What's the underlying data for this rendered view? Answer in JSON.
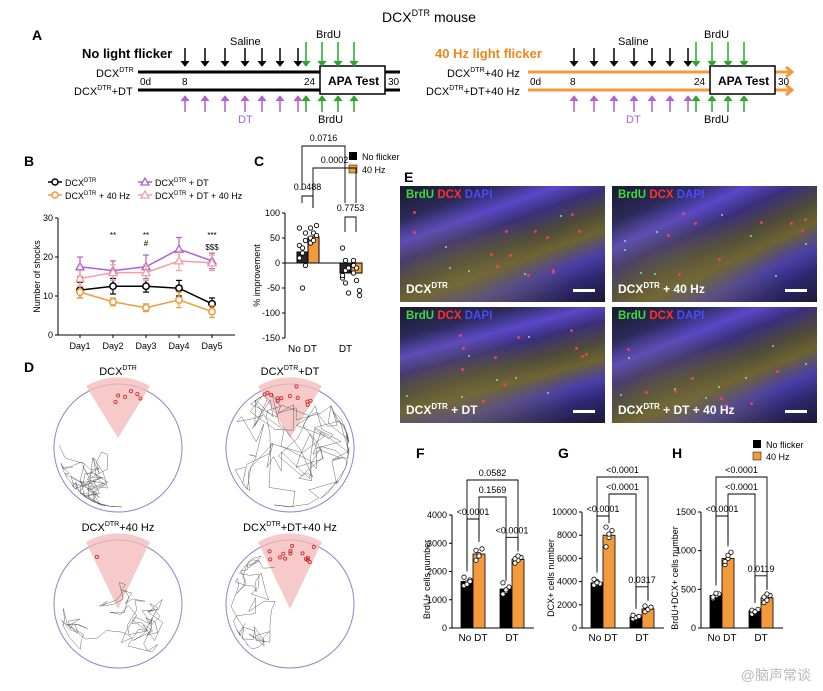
{
  "figure_title": "DCX",
  "figure_title_sup": "DTR",
  "figure_title_suffix": " mouse",
  "panel_labels": {
    "a": "A",
    "b": "B",
    "c": "C",
    "d": "D",
    "e": "E",
    "f": "F",
    "g": "G",
    "h": "H"
  },
  "colors": {
    "no_flicker": "#000000",
    "hz40": "#f29a3c",
    "purple": "#b15fd1",
    "green": "#2ba52b",
    "orange_title": "#f0851a",
    "pink": "#f0a0a0"
  },
  "panel_a": {
    "left_title": "No light flicker",
    "right_title": "40 Hz light flicker",
    "saline": "Saline",
    "brdu": "BrdU",
    "dt": "DT",
    "day0": "0d",
    "day8": "8",
    "day24": "24",
    "day30": "30",
    "apa": "APA Test",
    "left_groups": [
      "DCX",
      "DTR",
      "DCX",
      "DTR",
      "+DT"
    ],
    "right_groups": [
      "DCX",
      "DTR",
      "+40 Hz",
      "DCX",
      "DTR",
      "+DT+40 Hz"
    ]
  },
  "panel_b": {
    "legend": [
      {
        "label": "DCX",
        "sup": "DTR",
        "suffix": ""
      },
      {
        "label": "DCX",
        "sup": "DTR",
        "suffix": " + 40 Hz"
      },
      {
        "label": "DCX",
        "sup": "DTR",
        "suffix": " + DT"
      },
      {
        "label": "DCX",
        "sup": "DTR",
        "suffix": " + DT + 40 Hz"
      }
    ],
    "annotations": [
      {
        "day": "Day2",
        "text": "**"
      },
      {
        "day": "Day3",
        "text": "**"
      },
      {
        "day": "Day3",
        "text": "#"
      },
      {
        "day": "Day5",
        "text": "***"
      },
      {
        "day": "Day5",
        "text": "$$$"
      }
    ]
  },
  "panel_c": {
    "legend": [
      "No flicker",
      "40 Hz"
    ],
    "p_values": [
      "0.0716",
      "0.0002",
      "0.0488",
      "0.7753"
    ]
  },
  "panel_d": {
    "titles": [
      {
        "a": "DCX",
        "sup": "DTR",
        "b": ""
      },
      {
        "a": "DCX",
        "sup": "DTR",
        "b": "+DT"
      },
      {
        "a": "DCX",
        "sup": "DTR",
        "b": "+40 Hz"
      },
      {
        "a": "DCX",
        "sup": "DTR",
        "b": "+DT+40 Hz"
      }
    ]
  },
  "panel_e": {
    "stain": [
      "BrdU",
      "DCX",
      "DAPI"
    ],
    "labels": [
      {
        "a": "DCX",
        "sup": "DTR",
        "b": ""
      },
      {
        "a": "DCX",
        "sup": "DTR",
        "b": " + 40 Hz"
      },
      {
        "a": "DCX",
        "sup": "DTR",
        "b": " + DT"
      },
      {
        "a": "DCX",
        "sup": "DTR",
        "b": " + DT + 40 Hz"
      }
    ]
  },
  "panel_fgh_legend": [
    "No flicker",
    "40 Hz"
  ],
  "chart_data": [
    {
      "id": "B",
      "type": "line",
      "categories": [
        "Day1",
        "Day2",
        "Day3",
        "Day4",
        "Day5"
      ],
      "ylabel": "Number of shocks",
      "ylim": [
        0,
        30
      ],
      "yticks": [
        0,
        10,
        20,
        30
      ],
      "series": [
        {
          "name": "DCX^DTR",
          "color": "#000000",
          "values": [
            11.5,
            12.5,
            12.5,
            12,
            8
          ],
          "err": [
            2,
            2,
            1.5,
            2,
            1.5
          ]
        },
        {
          "name": "DCX^DTR + 40 Hz",
          "color": "#f29a3c",
          "values": [
            11,
            8.5,
            7,
            9,
            6
          ],
          "err": [
            1.5,
            1,
            1,
            2,
            1.5
          ]
        },
        {
          "name": "DCX^DTR + DT",
          "color": "#b15fd1",
          "values": [
            17.5,
            16.5,
            17.5,
            22,
            19
          ],
          "err": [
            2.5,
            2.5,
            3,
            3,
            2
          ]
        },
        {
          "name": "DCX^DTR + DT + 40 Hz",
          "color": "#f0a0a0",
          "values": [
            14.5,
            16,
            16,
            19,
            18.5
          ],
          "err": [
            2,
            2,
            2,
            2.5,
            2
          ]
        }
      ]
    },
    {
      "id": "C",
      "type": "bar",
      "categories": [
        "No DT",
        "DT"
      ],
      "ylabel": "% improvement",
      "ylim": [
        -150,
        100
      ],
      "yticks": [
        -150,
        -100,
        -50,
        0,
        50,
        100
      ],
      "series": [
        {
          "name": "No flicker",
          "values": [
            22,
            -20
          ],
          "points": [
            [
              35,
              30,
              -5,
              10,
              20,
              45,
              70,
              -50,
              60
            ],
            [
              -30,
              -15,
              -60,
              -25,
              5,
              -10,
              30,
              -40
            ]
          ]
        },
        {
          "name": "40 Hz",
          "values": [
            52,
            -20
          ],
          "points": [
            [
              40,
              60,
              75,
              50,
              45,
              55,
              70
            ],
            [
              -5,
              -35,
              -55,
              -20,
              -10,
              -65,
              5
            ]
          ]
        }
      ]
    },
    {
      "id": "F",
      "type": "bar",
      "categories": [
        "No DT",
        "DT"
      ],
      "ylabel": "BrdU+ cells number",
      "ylim": [
        0,
        4000
      ],
      "yticks": [
        0,
        1000,
        2000,
        3000,
        4000
      ],
      "p_values": [
        "0.0582",
        "0.1569",
        "<0.0001",
        "<0.0001"
      ],
      "series": [
        {
          "name": "No flicker",
          "values": [
            1650,
            1380
          ],
          "points": [
            [
              1500,
              1600,
              1700,
              1800,
              1550,
              1650
            ],
            [
              1200,
              1300,
              1450,
              1600,
              1350
            ]
          ]
        },
        {
          "name": "40 Hz",
          "values": [
            2620,
            2430
          ],
          "points": [
            [
              2400,
              2600,
              2800,
              2750,
              2550
            ],
            [
              2300,
              2400,
              2500,
              2450,
              2550
            ]
          ]
        }
      ]
    },
    {
      "id": "G",
      "type": "bar",
      "categories": [
        "No DT",
        "DT"
      ],
      "ylabel": "DCX+ cells number",
      "ylim": [
        0,
        10000
      ],
      "yticks": [
        0,
        2000,
        4000,
        6000,
        8000,
        10000
      ],
      "p_values": [
        "<0.0001",
        "<0.0001",
        "<0.0001",
        "0.0317"
      ],
      "series": [
        {
          "name": "No flicker",
          "values": [
            3900,
            950
          ],
          "points": [
            [
              3700,
              4000,
              3800,
              4200,
              3900
            ],
            [
              800,
              900,
              1000,
              1100
            ]
          ]
        },
        {
          "name": "40 Hz",
          "values": [
            8000,
            1650
          ],
          "points": [
            [
              7000,
              7800,
              8400,
              8700,
              8100
            ],
            [
              1400,
              1600,
              1800,
              1900
            ]
          ]
        }
      ]
    },
    {
      "id": "H",
      "type": "bar",
      "categories": [
        "No DT",
        "DT"
      ],
      "ylabel": "BrdU+DCX+ cells number",
      "ylim": [
        0,
        1500
      ],
      "yticks": [
        0,
        500,
        1000,
        1500
      ],
      "p_values": [
        "<0.0001",
        "<0.0001",
        "<0.0001",
        "0.0119"
      ],
      "series": [
        {
          "name": "No flicker",
          "values": [
            420,
            220
          ],
          "points": [
            [
              380,
              420,
              440,
              400,
              450
            ],
            [
              180,
              200,
              240,
              230,
              210
            ]
          ]
        },
        {
          "name": "40 Hz",
          "values": [
            900,
            390
          ],
          "points": [
            [
              820,
              900,
              980,
              860,
              940
            ],
            [
              330,
              360,
              420,
              400,
              440
            ]
          ]
        }
      ]
    }
  ],
  "watermark": "@脑声常谈"
}
